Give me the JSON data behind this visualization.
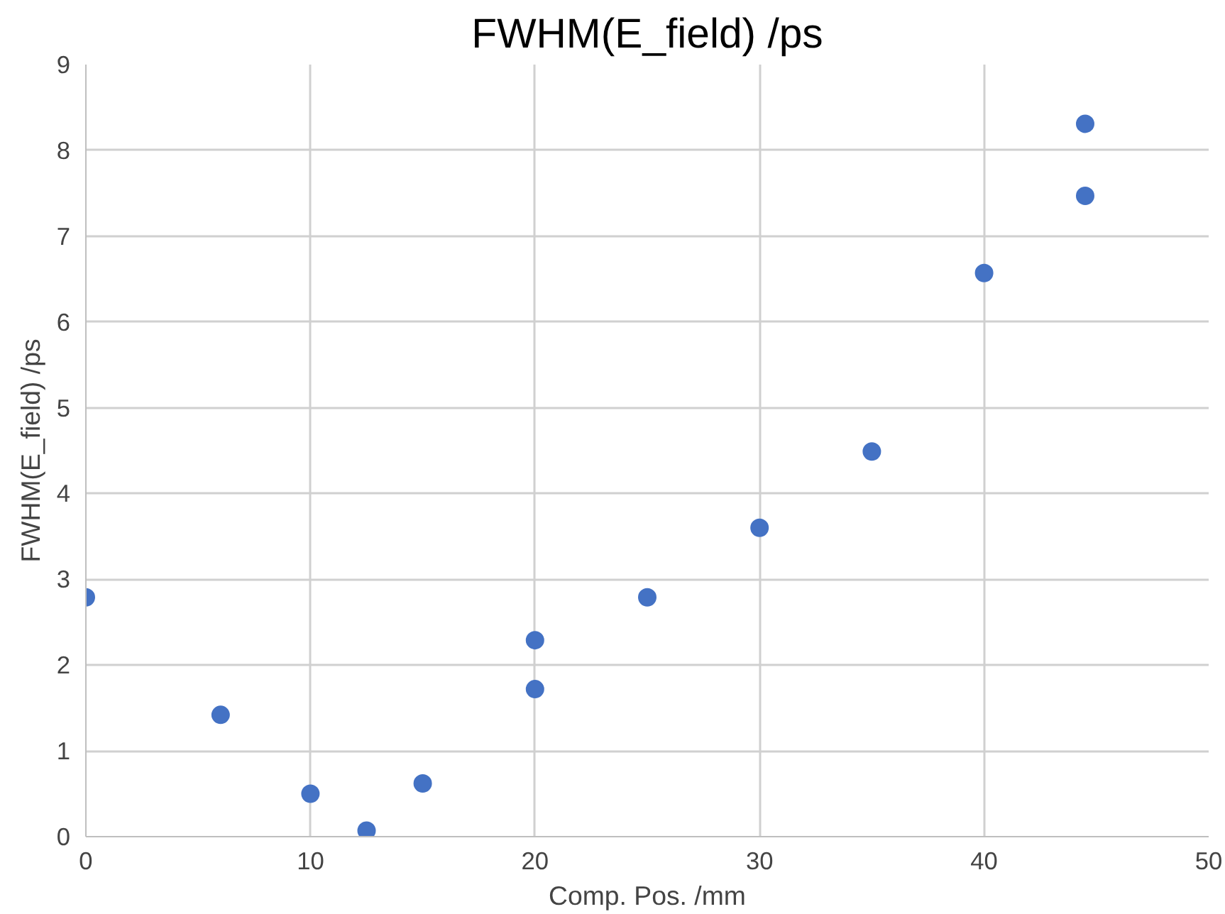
{
  "chart_data": {
    "type": "scatter",
    "title": "FWHM(E_field) /ps",
    "xlabel": "Comp. Pos. /mm",
    "ylabel": "FWHM(E_field) /ps",
    "x": [
      0,
      6,
      10,
      12.5,
      15,
      20,
      20,
      25,
      30,
      35,
      40,
      44.5,
      44.5
    ],
    "series": [
      {
        "color": "#4472c4",
        "values": [
          2.79,
          1.42,
          0.5,
          0.07,
          0.62,
          2.29,
          1.72,
          2.79,
          3.6,
          4.49,
          6.57,
          8.31,
          7.47
        ]
      }
    ],
    "xlim": [
      0,
      50
    ],
    "xticks": [
      0,
      10,
      20,
      30,
      40,
      50
    ],
    "ylim": [
      0,
      9
    ],
    "yticks": [
      0,
      1,
      2,
      3,
      4,
      5,
      6,
      7,
      8,
      9
    ],
    "grid": true,
    "marker": "circle"
  }
}
